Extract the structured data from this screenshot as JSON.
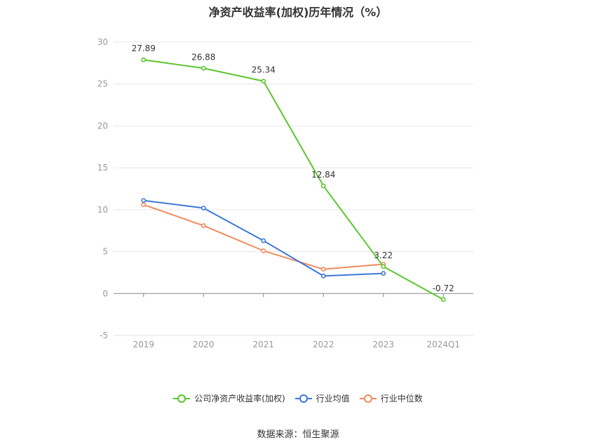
{
  "chart_data": {
    "type": "line",
    "title": "净资产收益率(加权)历年情况（%）",
    "categories": [
      "2019",
      "2020",
      "2021",
      "2022",
      "2023",
      "2024Q1"
    ],
    "ylim": [
      -5,
      30
    ],
    "yticks": [
      -5,
      0,
      5,
      10,
      15,
      20,
      25,
      30
    ],
    "grid": true,
    "legend_position": "bottom",
    "series": [
      {
        "name": "公司净资产收益率(加权)",
        "color": "#5cc52f",
        "values": [
          27.89,
          26.88,
          25.34,
          12.84,
          3.22,
          -0.72
        ],
        "labels": [
          "27.89",
          "26.88",
          "25.34",
          "12.84",
          "3.22",
          "-0.72"
        ]
      },
      {
        "name": "行业均值",
        "color": "#3c78d8",
        "values": [
          11.1,
          10.2,
          6.3,
          2.1,
          2.4,
          null
        ]
      },
      {
        "name": "行业中位数",
        "color": "#f08b5e",
        "values": [
          10.6,
          8.1,
          5.1,
          2.9,
          3.5,
          null
        ]
      }
    ]
  },
  "source": "数据来源：恒生聚源"
}
